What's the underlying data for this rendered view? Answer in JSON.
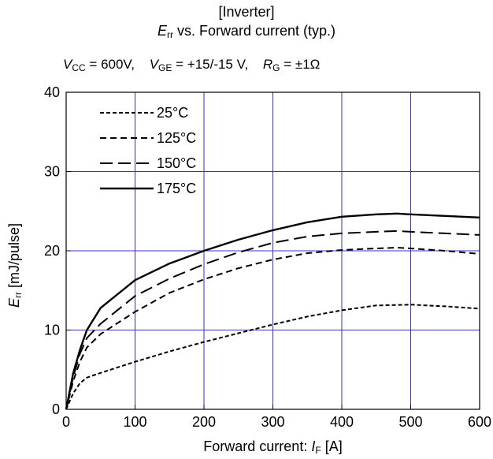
{
  "header": {
    "line1": "[Inverter]",
    "title_sym": "E",
    "title_sub": "rr",
    "title_rest": " vs. Forward current  (typ.)"
  },
  "conditions": {
    "vcc_sym": "V",
    "vcc_sub": "CC",
    "vcc_val": "= 600V,",
    "vge_sym": "V",
    "vge_sub": "GE",
    "vge_val": "= +15/-15 V,",
    "rg_sym": "R",
    "rg_sub": "G",
    "rg_val": "=   ±1Ω"
  },
  "axes": {
    "y_sym": "E",
    "y_sub": "rr",
    "y_rest": " [mJ/pulse]",
    "x_text": "Forward current: ",
    "x_sym": "I",
    "x_sub": "F",
    "x_unit": " [A]"
  },
  "chart_data": {
    "type": "line",
    "xlim": [
      0,
      600
    ],
    "ylim": [
      0,
      40
    ],
    "xticks": [
      0,
      100,
      200,
      300,
      400,
      500,
      600
    ],
    "yticks": [
      0,
      10,
      20,
      30,
      40
    ],
    "grid": true,
    "grid_color": "#3333cc",
    "legend_position": "top-left",
    "series": [
      {
        "name": "25°C",
        "dash": "5,3",
        "width": 2,
        "x": [
          0,
          10,
          20,
          30,
          50,
          100,
          150,
          200,
          250,
          300,
          350,
          400,
          450,
          500,
          550,
          600
        ],
        "y": [
          0,
          2.0,
          3.3,
          4.0,
          4.6,
          6.0,
          7.3,
          8.5,
          9.6,
          10.7,
          11.7,
          12.5,
          13.1,
          13.2,
          13.0,
          12.7
        ]
      },
      {
        "name": "125°C",
        "dash": "8,5",
        "width": 2,
        "x": [
          0,
          10,
          20,
          30,
          50,
          100,
          150,
          200,
          250,
          300,
          350,
          400,
          450,
          480,
          500,
          550,
          600
        ],
        "y": [
          0,
          3.5,
          6.0,
          7.8,
          9.5,
          12.3,
          14.7,
          16.4,
          17.8,
          18.9,
          19.7,
          20.1,
          20.3,
          20.4,
          20.3,
          20.0,
          19.6
        ]
      },
      {
        "name": "150°C",
        "dash": "16,7",
        "width": 2,
        "x": [
          0,
          10,
          20,
          30,
          50,
          100,
          150,
          200,
          250,
          300,
          350,
          400,
          450,
          480,
          500,
          550,
          600
        ],
        "y": [
          0,
          4.0,
          7.0,
          9.0,
          10.8,
          14.3,
          16.5,
          18.3,
          19.8,
          21.0,
          21.8,
          22.2,
          22.4,
          22.5,
          22.4,
          22.2,
          22.0
        ]
      },
      {
        "name": "175°C",
        "dash": "",
        "width": 2.4,
        "x": [
          0,
          10,
          20,
          30,
          50,
          100,
          150,
          200,
          250,
          300,
          350,
          400,
          450,
          480,
          500,
          550,
          600
        ],
        "y": [
          0,
          4.5,
          7.5,
          10.0,
          12.8,
          16.3,
          18.4,
          20.0,
          21.4,
          22.6,
          23.6,
          24.3,
          24.6,
          24.7,
          24.6,
          24.4,
          24.2
        ]
      }
    ]
  }
}
